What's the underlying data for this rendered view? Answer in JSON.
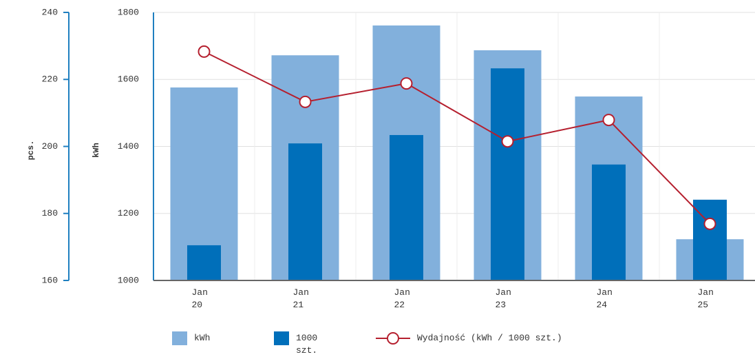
{
  "chart_data": {
    "type": "bar",
    "categories": [
      "Jan 20",
      "Jan 21",
      "Jan 22",
      "Jan 23",
      "Jan 24",
      "Jan 25"
    ],
    "ylabel": "pcs.",
    "y2label": "kWh",
    "ylim": [
      160,
      240
    ],
    "yticks": [
      160,
      180,
      200,
      220,
      240
    ],
    "y2lim": [
      1000,
      1800
    ],
    "y2ticks": [
      1000,
      1200,
      1400,
      1600,
      1800
    ],
    "grid": true,
    "series": [
      {
        "name": "kWh",
        "type": "bar",
        "color": "#82b0dc",
        "axis": "y2",
        "values": [
          1576,
          1672,
          1761,
          1687,
          1549,
          1123
        ]
      },
      {
        "name": "1000 szt.",
        "type": "bar",
        "color": "#006fba",
        "axis": "y",
        "values": [
          170.5,
          200.9,
          203.4,
          223.3,
          194.6,
          184.1
        ]
      },
      {
        "name": "Wydajność (kWh / 1000 szt.)",
        "type": "line",
        "color": "#b51f2e",
        "axis": "y2",
        "values": [
          1683,
          1533,
          1588,
          1415,
          1479,
          1169
        ]
      }
    ]
  }
}
